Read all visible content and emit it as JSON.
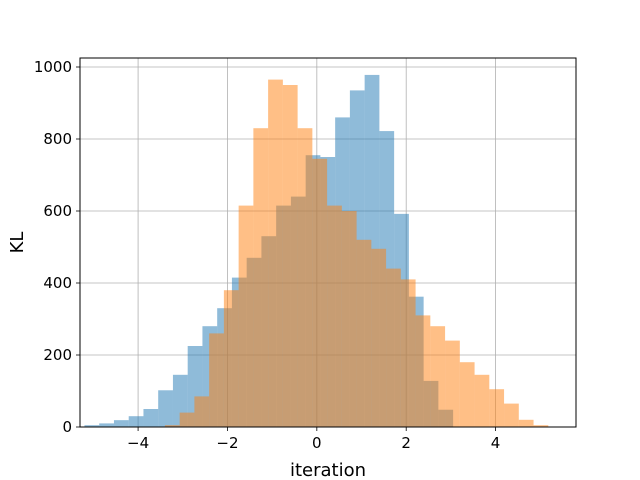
{
  "chart_data": {
    "type": "bar",
    "title": "",
    "xlabel": "iteration",
    "ylabel": "KL",
    "xlim": [
      -5.3,
      5.8
    ],
    "ylim": [
      0,
      1025
    ],
    "grid": true,
    "x_ticks": [
      -4,
      -2,
      0,
      2,
      4
    ],
    "x_tick_labels": [
      "−4",
      "−2",
      "0",
      "2",
      "4"
    ],
    "y_ticks": [
      0,
      200,
      400,
      600,
      800,
      1000
    ],
    "y_tick_labels": [
      "0",
      "200",
      "400",
      "600",
      "800",
      "1000"
    ],
    "series": [
      {
        "color": "#1f77b4",
        "opacity": 0.5,
        "bin_edges": [
          -5.2,
          -4.87,
          -4.54,
          -4.21,
          -3.88,
          -3.55,
          -3.22,
          -2.89,
          -2.56,
          -2.23,
          -1.9,
          -1.57,
          -1.24,
          -0.91,
          -0.58,
          -0.25,
          0.08,
          0.41,
          0.74,
          1.07,
          1.4,
          1.73,
          2.06,
          2.39,
          2.72,
          3.05
        ],
        "counts": [
          5,
          10,
          19,
          30,
          50,
          102,
          145,
          225,
          280,
          330,
          415,
          470,
          530,
          615,
          640,
          755,
          750,
          860,
          935,
          978,
          822,
          592,
          362,
          128,
          48
        ]
      },
      {
        "color": "#ff7f0e",
        "opacity": 0.5,
        "bin_edges": [
          -3.4,
          -3.07,
          -2.74,
          -2.41,
          -2.08,
          -1.75,
          -1.42,
          -1.09,
          -0.76,
          -0.43,
          -0.1,
          0.23,
          0.56,
          0.89,
          1.22,
          1.55,
          1.88,
          2.21,
          2.54,
          2.87,
          3.2,
          3.53,
          3.86,
          4.19,
          4.52,
          4.85,
          5.18
        ],
        "counts": [
          5,
          40,
          85,
          260,
          380,
          615,
          830,
          965,
          950,
          830,
          745,
          615,
          600,
          520,
          495,
          440,
          410,
          310,
          280,
          240,
          180,
          145,
          105,
          65,
          20,
          5
        ]
      }
    ]
  }
}
